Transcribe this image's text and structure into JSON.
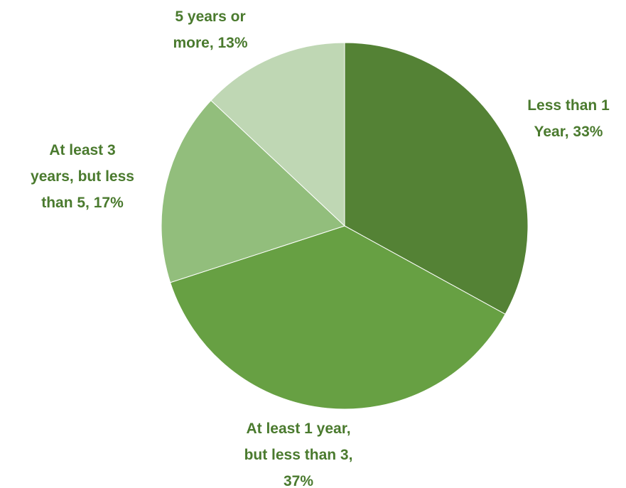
{
  "chart_data": {
    "type": "pie",
    "title": "",
    "categories": [
      "Less than 1 Year",
      "At least 1 year, but less than 3",
      "At least 3 years, but less than 5",
      "5 years or more"
    ],
    "values": [
      33,
      37,
      17,
      13
    ],
    "unit": "%",
    "start_angle_deg": 0,
    "direction": "clockwise",
    "colors": [
      "#548235",
      "#67a043",
      "#92be7c",
      "#bfd7b4"
    ],
    "label_color": "#4a7a2e",
    "legend": "none",
    "data_labels": [
      [
        "Less than 1",
        "Year, 33%"
      ],
      [
        "At least 1 year,",
        "but less than 3,",
        "37%"
      ],
      [
        "At least 3",
        "years, but less",
        "than 5, 17%"
      ],
      [
        "5 years or",
        "more, 13%"
      ]
    ]
  }
}
